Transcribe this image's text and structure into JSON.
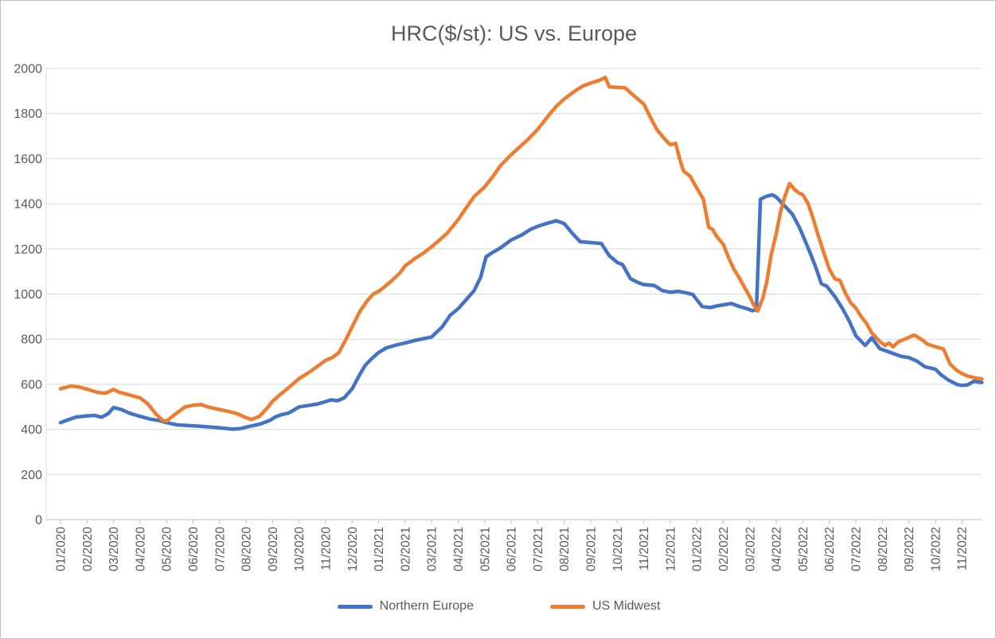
{
  "title": "HRC($/st): US vs. Europe",
  "colors": {
    "northern_europe": "#4472C4",
    "us_midwest": "#ED7D31",
    "gridline": "#D9D9D9",
    "axis_line": "#BFBFBF",
    "text": "#595959"
  },
  "chart_data": {
    "type": "line",
    "title": "HRC($/st): US vs. Europe",
    "xlabel": "",
    "ylabel": "",
    "ylim": [
      0,
      2000
    ],
    "y_ticks": [
      0,
      200,
      400,
      600,
      800,
      1000,
      1200,
      1400,
      1600,
      1800,
      2000
    ],
    "grid": "horizontal",
    "legend_position": "bottom",
    "x_unit": "month index, 0 = 01/2020, fractional = weeks within month",
    "x_tick_labels": [
      "01/2020",
      "02/2020",
      "03/2020",
      "04/2020",
      "05/2020",
      "06/2020",
      "07/2020",
      "08/2020",
      "09/2020",
      "10/2020",
      "11/2020",
      "12/2020",
      "01/2021",
      "02/2021",
      "03/2021",
      "04/2021",
      "05/2021",
      "06/2021",
      "07/2021",
      "08/2021",
      "09/2021",
      "10/2021",
      "11/2021",
      "12/2021",
      "01/2022",
      "02/2022",
      "03/2022",
      "04/2022",
      "05/2022",
      "06/2022",
      "07/2022",
      "08/2022",
      "09/2022",
      "10/2022",
      "11/2022"
    ],
    "series": [
      {
        "name": "Northern Europe",
        "color": "#4472C4",
        "points": [
          [
            0,
            430
          ],
          [
            0.3,
            443
          ],
          [
            0.6,
            455
          ],
          [
            1,
            460
          ],
          [
            1.3,
            462
          ],
          [
            1.55,
            454
          ],
          [
            1.8,
            470
          ],
          [
            2,
            497
          ],
          [
            2.3,
            488
          ],
          [
            2.6,
            472
          ],
          [
            3,
            458
          ],
          [
            3.4,
            445
          ],
          [
            3.7,
            440
          ],
          [
            4,
            430
          ],
          [
            4.4,
            420
          ],
          [
            5,
            416
          ],
          [
            5.5,
            412
          ],
          [
            6,
            407
          ],
          [
            6.5,
            401
          ],
          [
            6.8,
            404
          ],
          [
            7,
            410
          ],
          [
            7.5,
            423
          ],
          [
            7.9,
            440
          ],
          [
            8.1,
            455
          ],
          [
            8.35,
            466
          ],
          [
            8.6,
            472
          ],
          [
            9,
            500
          ],
          [
            9.4,
            507
          ],
          [
            9.7,
            513
          ],
          [
            10,
            523
          ],
          [
            10.2,
            531
          ],
          [
            10.45,
            527
          ],
          [
            10.7,
            540
          ],
          [
            11,
            580
          ],
          [
            11.25,
            635
          ],
          [
            11.5,
            685
          ],
          [
            11.75,
            715
          ],
          [
            12,
            741
          ],
          [
            12.3,
            762
          ],
          [
            12.6,
            772
          ],
          [
            13,
            783
          ],
          [
            13.4,
            795
          ],
          [
            13.7,
            802
          ],
          [
            14,
            810
          ],
          [
            14.4,
            855
          ],
          [
            14.7,
            906
          ],
          [
            15,
            935
          ],
          [
            15.3,
            975
          ],
          [
            15.6,
            1015
          ],
          [
            15.85,
            1075
          ],
          [
            16.05,
            1165
          ],
          [
            16.3,
            1185
          ],
          [
            16.6,
            1205
          ],
          [
            17,
            1240
          ],
          [
            17.4,
            1262
          ],
          [
            17.7,
            1285
          ],
          [
            18,
            1300
          ],
          [
            18.4,
            1315
          ],
          [
            18.7,
            1325
          ],
          [
            19,
            1312
          ],
          [
            19.3,
            1270
          ],
          [
            19.6,
            1232
          ],
          [
            20,
            1228
          ],
          [
            20.4,
            1224
          ],
          [
            20.7,
            1170
          ],
          [
            21,
            1140
          ],
          [
            21.2,
            1130
          ],
          [
            21.5,
            1068
          ],
          [
            21.8,
            1050
          ],
          [
            22,
            1042
          ],
          [
            22.4,
            1038
          ],
          [
            22.7,
            1015
          ],
          [
            23,
            1008
          ],
          [
            23.3,
            1012
          ],
          [
            23.6,
            1005
          ],
          [
            23.85,
            998
          ],
          [
            24,
            975
          ],
          [
            24.2,
            945
          ],
          [
            24.5,
            940
          ],
          [
            24.8,
            948
          ],
          [
            25,
            952
          ],
          [
            25.3,
            958
          ],
          [
            25.6,
            945
          ],
          [
            25.9,
            935
          ],
          [
            26.1,
            926
          ],
          [
            26.25,
            930
          ],
          [
            26.4,
            1420
          ],
          [
            26.6,
            1432
          ],
          [
            26.85,
            1440
          ],
          [
            27,
            1430
          ],
          [
            27.3,
            1392
          ],
          [
            27.6,
            1355
          ],
          [
            27.85,
            1300
          ],
          [
            28,
            1260
          ],
          [
            28.25,
            1190
          ],
          [
            28.5,
            1115
          ],
          [
            28.7,
            1045
          ],
          [
            28.9,
            1035
          ],
          [
            29,
            1020
          ],
          [
            29.2,
            990
          ],
          [
            29.5,
            935
          ],
          [
            29.75,
            880
          ],
          [
            30,
            815
          ],
          [
            30.2,
            790
          ],
          [
            30.35,
            772
          ],
          [
            30.6,
            806
          ],
          [
            30.9,
            758
          ],
          [
            31.3,
            741
          ],
          [
            31.7,
            724
          ],
          [
            32,
            718
          ],
          [
            32.3,
            703
          ],
          [
            32.6,
            678
          ],
          [
            33,
            667
          ],
          [
            33.2,
            643
          ],
          [
            33.5,
            618
          ],
          [
            33.8,
            600
          ],
          [
            34,
            595
          ],
          [
            34.2,
            597
          ],
          [
            34.45,
            613
          ],
          [
            34.75,
            608
          ]
        ]
      },
      {
        "name": "US Midwest",
        "color": "#ED7D31",
        "points": [
          [
            0,
            580
          ],
          [
            0.4,
            592
          ],
          [
            0.7,
            588
          ],
          [
            1,
            578
          ],
          [
            1.4,
            564
          ],
          [
            1.7,
            560
          ],
          [
            2,
            577
          ],
          [
            2.2,
            565
          ],
          [
            2.5,
            556
          ],
          [
            3,
            540
          ],
          [
            3.3,
            512
          ],
          [
            3.6,
            468
          ],
          [
            3.85,
            440
          ],
          [
            4,
            437
          ],
          [
            4.3,
            465
          ],
          [
            4.7,
            500
          ],
          [
            5,
            507
          ],
          [
            5.3,
            510
          ],
          [
            5.6,
            498
          ],
          [
            6,
            488
          ],
          [
            6.4,
            478
          ],
          [
            6.7,
            468
          ],
          [
            7,
            452
          ],
          [
            7.2,
            444
          ],
          [
            7.5,
            458
          ],
          [
            7.8,
            495
          ],
          [
            8,
            525
          ],
          [
            8.3,
            556
          ],
          [
            8.6,
            585
          ],
          [
            9,
            625
          ],
          [
            9.4,
            655
          ],
          [
            9.7,
            680
          ],
          [
            10,
            706
          ],
          [
            10.25,
            718
          ],
          [
            10.5,
            740
          ],
          [
            10.75,
            795
          ],
          [
            11,
            855
          ],
          [
            11.3,
            925
          ],
          [
            11.6,
            975
          ],
          [
            11.8,
            1000
          ],
          [
            12,
            1012
          ],
          [
            12.2,
            1030
          ],
          [
            12.5,
            1060
          ],
          [
            12.8,
            1093
          ],
          [
            13,
            1125
          ],
          [
            13.4,
            1160
          ],
          [
            13.7,
            1182
          ],
          [
            14,
            1210
          ],
          [
            14.3,
            1240
          ],
          [
            14.6,
            1272
          ],
          [
            15,
            1330
          ],
          [
            15.3,
            1382
          ],
          [
            15.6,
            1432
          ],
          [
            16,
            1475
          ],
          [
            16.3,
            1520
          ],
          [
            16.6,
            1570
          ],
          [
            17,
            1618
          ],
          [
            17.3,
            1650
          ],
          [
            17.6,
            1682
          ],
          [
            18,
            1730
          ],
          [
            18.4,
            1790
          ],
          [
            18.7,
            1832
          ],
          [
            19,
            1865
          ],
          [
            19.4,
            1900
          ],
          [
            19.7,
            1922
          ],
          [
            20,
            1935
          ],
          [
            20.3,
            1946
          ],
          [
            20.55,
            1960
          ],
          [
            20.7,
            1918
          ],
          [
            21,
            1916
          ],
          [
            21.3,
            1914
          ],
          [
            21.6,
            1882
          ],
          [
            21.9,
            1852
          ],
          [
            22,
            1842
          ],
          [
            22.3,
            1772
          ],
          [
            22.5,
            1728
          ],
          [
            22.8,
            1686
          ],
          [
            23,
            1662
          ],
          [
            23.2,
            1668
          ],
          [
            23.35,
            1600
          ],
          [
            23.5,
            1545
          ],
          [
            23.75,
            1522
          ],
          [
            24,
            1470
          ],
          [
            24.25,
            1420
          ],
          [
            24.45,
            1295
          ],
          [
            24.6,
            1286
          ],
          [
            24.75,
            1255
          ],
          [
            25,
            1220
          ],
          [
            25.2,
            1160
          ],
          [
            25.4,
            1110
          ],
          [
            25.6,
            1072
          ],
          [
            25.8,
            1030
          ],
          [
            26,
            988
          ],
          [
            26.15,
            950
          ],
          [
            26.3,
            925
          ],
          [
            26.5,
            985
          ],
          [
            26.65,
            1060
          ],
          [
            26.8,
            1170
          ],
          [
            27,
            1270
          ],
          [
            27.15,
            1360
          ],
          [
            27.3,
            1425
          ],
          [
            27.5,
            1490
          ],
          [
            27.7,
            1462
          ],
          [
            27.85,
            1448
          ],
          [
            28,
            1440
          ],
          [
            28.2,
            1400
          ],
          [
            28.4,
            1330
          ],
          [
            28.6,
            1252
          ],
          [
            28.8,
            1180
          ],
          [
            29,
            1110
          ],
          [
            29.2,
            1068
          ],
          [
            29.4,
            1060
          ],
          [
            29.6,
            1005
          ],
          [
            29.8,
            962
          ],
          [
            30,
            938
          ],
          [
            30.2,
            900
          ],
          [
            30.4,
            870
          ],
          [
            30.6,
            828
          ],
          [
            30.9,
            790
          ],
          [
            31.1,
            772
          ],
          [
            31.25,
            783
          ],
          [
            31.4,
            766
          ],
          [
            31.6,
            788
          ],
          [
            32,
            808
          ],
          [
            32.2,
            818
          ],
          [
            32.5,
            797
          ],
          [
            32.7,
            778
          ],
          [
            33,
            766
          ],
          [
            33.3,
            757
          ],
          [
            33.55,
            690
          ],
          [
            33.8,
            662
          ],
          [
            34,
            648
          ],
          [
            34.2,
            637
          ],
          [
            34.5,
            628
          ],
          [
            34.75,
            624
          ]
        ]
      }
    ]
  }
}
